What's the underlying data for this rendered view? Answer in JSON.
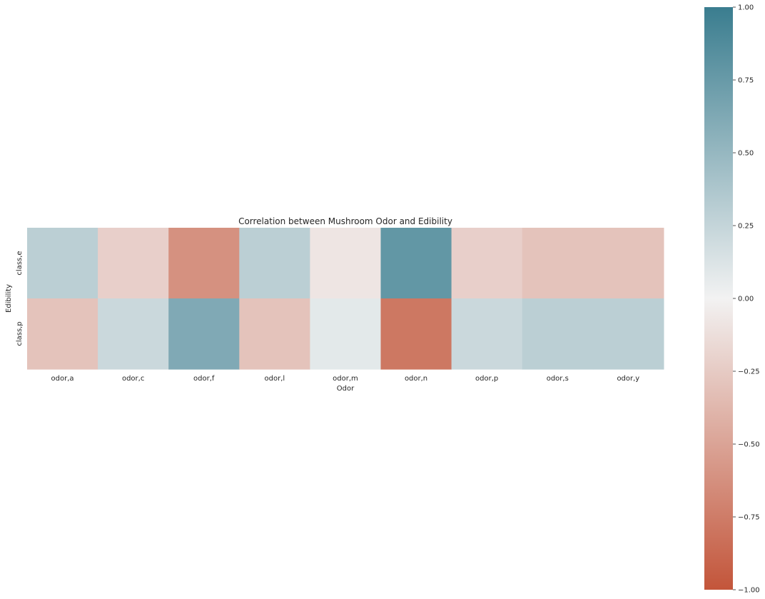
{
  "chart_data": {
    "type": "heatmap",
    "title": "Correlation between Mushroom Odor and Edibility",
    "xlabel": "Odor",
    "ylabel": "Edibility",
    "x_categories": [
      "odor,a",
      "odor,c",
      "odor,f",
      "odor,l",
      "odor,m",
      "odor,n",
      "odor,p",
      "odor,s",
      "odor,y"
    ],
    "y_categories": [
      "class,e",
      "class,p"
    ],
    "values": [
      [
        0.3,
        -0.22,
        -0.62,
        0.3,
        -0.08,
        0.78,
        -0.22,
        -0.3,
        -0.3
      ],
      [
        -0.3,
        0.22,
        0.62,
        -0.3,
        0.08,
        -0.78,
        0.22,
        0.3,
        0.3
      ]
    ],
    "colorbar": {
      "range": [
        -1.0,
        1.0
      ],
      "ticks": [
        -1.0,
        -0.75,
        -0.5,
        -0.25,
        0.0,
        0.25,
        0.5,
        0.75,
        1.0
      ],
      "tick_labels": [
        "−1.00",
        "−0.75",
        "−0.50",
        "−0.25",
        "0.00",
        "0.25",
        "0.50",
        "0.75",
        "1.00"
      ],
      "low_color": "#c3553a",
      "mid_color": "#f2f2f2",
      "high_color": "#3a7d8f"
    },
    "grid": false
  }
}
